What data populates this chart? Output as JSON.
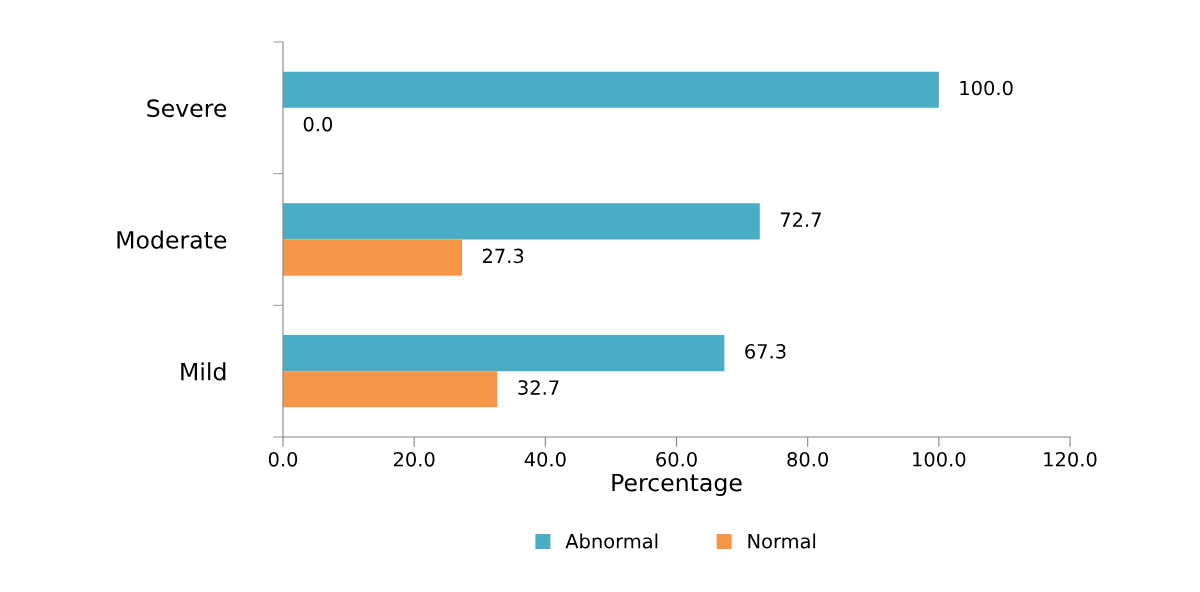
{
  "chart_data": {
    "type": "bar",
    "orientation": "horizontal",
    "xlabel": "Percentage",
    "categories": [
      "Severe",
      "Moderate",
      "Mild"
    ],
    "series": [
      {
        "name": "Abnormal",
        "color": "#4bacc6",
        "values": [
          100.0,
          72.7,
          67.3
        ],
        "value_labels": [
          "100.0",
          "72.7",
          "67.3"
        ]
      },
      {
        "name": "Normal",
        "color": "#f79646",
        "values": [
          0.0,
          27.3,
          32.7
        ],
        "value_labels": [
          "0.0",
          "27.3",
          "32.7"
        ]
      }
    ],
    "xlim": [
      0,
      120
    ],
    "xticks": [
      {
        "value": 0,
        "label": "0.0"
      },
      {
        "value": 20,
        "label": "20.0"
      },
      {
        "value": 40,
        "label": "40.0"
      },
      {
        "value": 60,
        "label": "60.0"
      },
      {
        "value": 80,
        "label": "80.0"
      },
      {
        "value": 100,
        "label": "100.0"
      },
      {
        "value": 120,
        "label": "120.0"
      }
    ],
    "grid": false,
    "legend": "bottom"
  }
}
